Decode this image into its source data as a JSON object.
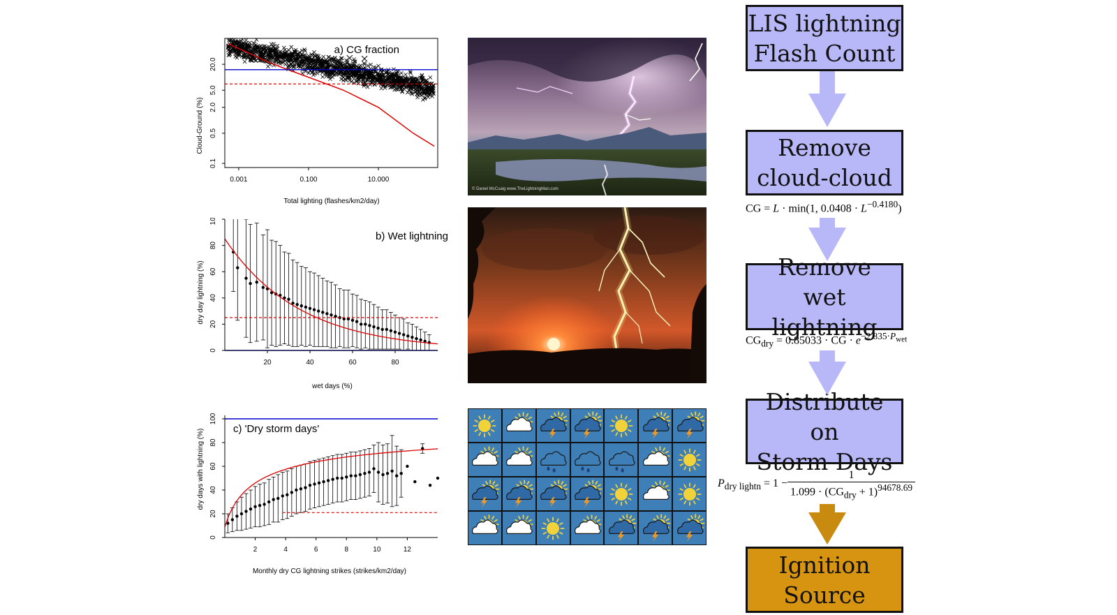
{
  "plots": {
    "a": {
      "title": "a) CG fraction",
      "ylabel": "Cloud-Ground (%)",
      "xlabel": "Total lighting (flashes/km2/day)",
      "yticks": [
        "20.0",
        "5.0",
        "2.0",
        "0.5",
        "0.1"
      ],
      "xticks": [
        "0.001",
        "0.100",
        "10.000"
      ]
    },
    "b": {
      "title": "b) Wet lightning",
      "ylabel": "dry day lightning (%)",
      "xlabel": "wet days (%)",
      "yticks": [
        "100",
        "80",
        "60",
        "40",
        "20",
        "0"
      ],
      "xticks": [
        "20",
        "40",
        "60",
        "80"
      ]
    },
    "c": {
      "title": "c) 'Dry storm days'",
      "ylabel": "dry days with lightning (%)",
      "xlabel": "Monthly dry CG lightning strikes (strikes/km2/day)",
      "yticks": [
        "100",
        "80",
        "60",
        "40",
        "20",
        "0"
      ],
      "xticks": [
        "2",
        "4",
        "6",
        "8",
        "10",
        "12"
      ]
    }
  },
  "chart_data": [
    {
      "type": "scatter",
      "title": "a) CG fraction",
      "xlabel": "Total lighting (flashes/km2/day)",
      "ylabel": "Cloud-Ground (%)",
      "xscale": "log",
      "yscale": "log",
      "xlim": [
        0.0004,
        500
      ],
      "ylim": [
        0.08,
        80
      ],
      "reference_lines": [
        {
          "color": "#0000cc",
          "style": "solid",
          "y": 15
        },
        {
          "color": "#dd0000",
          "style": "dashed",
          "y": 7
        }
      ],
      "fit": {
        "color": "#dd0000",
        "points": [
          [
            0.0005,
            60
          ],
          [
            0.01,
            20
          ],
          [
            1,
            5
          ],
          [
            10,
            2
          ],
          [
            100,
            0.5
          ],
          [
            400,
            0.25
          ]
        ]
      },
      "colors": {
        "points": "#000000"
      }
    },
    {
      "type": "scatter",
      "title": "b) Wet lightning",
      "xlabel": "wet days (%)",
      "ylabel": "dry day lightning (%)",
      "xlim": [
        0,
        100
      ],
      "ylim": [
        0,
        100
      ],
      "reference_lines": [
        {
          "color": "#0000cc",
          "style": "solid",
          "y": 0
        },
        {
          "color": "#dd0000",
          "style": "dashed",
          "y": 25
        }
      ],
      "fit_formula": "85.033 * exp(-2.835 * x/100)",
      "series": [
        {
          "x": [
            4,
            6,
            10,
            12,
            15,
            18,
            20,
            22,
            24,
            26,
            28,
            30,
            32,
            34,
            36,
            38,
            40,
            42,
            44,
            46,
            48,
            50,
            52,
            54,
            56,
            58,
            60,
            62,
            64,
            66,
            68,
            70,
            72,
            74,
            76,
            78,
            80,
            82,
            84,
            86,
            88,
            90,
            92,
            94,
            96
          ],
          "y": [
            75,
            63,
            55,
            51,
            52,
            48,
            47,
            44,
            43,
            42,
            40,
            39,
            36,
            35,
            34,
            33,
            32,
            31,
            30,
            29,
            28,
            27,
            26,
            25,
            24,
            24,
            23,
            22,
            20,
            20,
            19,
            18,
            17,
            16,
            16,
            15,
            14,
            13,
            12,
            11,
            10,
            9,
            8,
            7,
            6
          ],
          "err": [
            30,
            40,
            45,
            45,
            45,
            40,
            45,
            40,
            40,
            38,
            35,
            35,
            33,
            32,
            30,
            30,
            28,
            28,
            27,
            26,
            25,
            25,
            24,
            22,
            22,
            22,
            20,
            20,
            19,
            18,
            18,
            17,
            16,
            15,
            15,
            14,
            13,
            12,
            12,
            10,
            10,
            9,
            8,
            7,
            6
          ]
        }
      ],
      "colors": {
        "points": "#000000",
        "fit": "#dd0000"
      }
    },
    {
      "type": "scatter",
      "title": "c) 'Dry storm days'",
      "xlabel": "Monthly dry CG lightning strikes (strikes/km2/day)",
      "ylabel": "dry days with lightning (%)",
      "xlim": [
        0,
        14
      ],
      "ylim": [
        0,
        100
      ],
      "reference_lines": [
        {
          "color": "#0000cc",
          "style": "solid",
          "y": 100
        },
        {
          "color": "#dd0000",
          "style": "dashed",
          "y": 21,
          "x_from": 3.8
        }
      ],
      "fit_formula": "P = 1 - 1/(1.099*(x+1)^0.94678)",
      "series": [
        {
          "x": [
            0.2,
            0.5,
            0.8,
            1.1,
            1.4,
            1.7,
            2.0,
            2.3,
            2.6,
            2.9,
            3.2,
            3.5,
            3.8,
            4.1,
            4.4,
            4.7,
            5.0,
            5.3,
            5.6,
            5.9,
            6.2,
            6.5,
            6.8,
            7.1,
            7.4,
            7.7,
            8.0,
            8.3,
            8.6,
            8.9,
            9.2,
            9.5,
            9.8,
            10.1,
            10.4,
            10.7,
            11.0,
            11.3,
            11.6,
            12.0,
            12.5,
            13.0,
            13.5,
            14.0
          ],
          "y": [
            12,
            15,
            18,
            20,
            22,
            24,
            26,
            27,
            28,
            30,
            32,
            33,
            35,
            36,
            38,
            40,
            41,
            42,
            44,
            45,
            46,
            47,
            48,
            49,
            50,
            50,
            51,
            52,
            52,
            53,
            54,
            55,
            58,
            55,
            53,
            54,
            56,
            52,
            54,
            60,
            47,
            75,
            44,
            50
          ],
          "err": [
            8,
            10,
            12,
            14,
            15,
            16,
            17,
            18,
            18,
            19,
            19,
            20,
            20,
            20,
            20,
            20,
            20,
            20,
            20,
            20,
            20,
            20,
            20,
            20,
            20,
            20,
            20,
            20,
            20,
            20,
            20,
            20,
            20,
            25,
            25,
            25,
            30,
            25,
            20,
            0,
            0,
            4,
            0,
            0
          ]
        }
      ],
      "colors": {
        "points": "#000000",
        "fit": "#dd0000"
      }
    }
  ],
  "weather_grid": {
    "rows": [
      [
        "sun",
        "cloud-sun",
        "storm-sun",
        "storm-sun",
        "sun",
        "storm-sun",
        "storm-sun"
      ],
      [
        "cloud-sun",
        "cloud-sun",
        "rain",
        "rain",
        "rain",
        "cloud-sun",
        "sun"
      ],
      [
        "storm-sun",
        "storm-sun",
        "storm-sun",
        "storm-sun",
        "sun",
        "cloud-sun",
        "sun"
      ],
      [
        "cloud-sun",
        "cloud-sun",
        "sun",
        "cloud-sun",
        "storm-sun",
        "storm-sun",
        "storm-sun"
      ]
    ],
    "colors": {
      "background": "#3f7fb8",
      "sun": "#f2d23a",
      "cloud": "#ffffff",
      "bolt": "#f39a1e"
    }
  },
  "photo_credits": {
    "photo1": "© Daniel McCuaig\nwww.TheLightningMan.com",
    "photo2": ""
  },
  "flowchart": {
    "steps": [
      {
        "label": "LIS lightning\nFlash Count"
      },
      {
        "label": "Remove\ncloud-cloud"
      },
      {
        "label": "Remove\nwet lightning"
      },
      {
        "label": "Distribute on\nStorm Days"
      },
      {
        "label": "Ignition\nSource"
      }
    ],
    "colors": {
      "box": "#b8b8f8",
      "arrow": "#b8b8f8",
      "final_box": "#d69410",
      "final_arrow": "#c98a10"
    }
  }
}
